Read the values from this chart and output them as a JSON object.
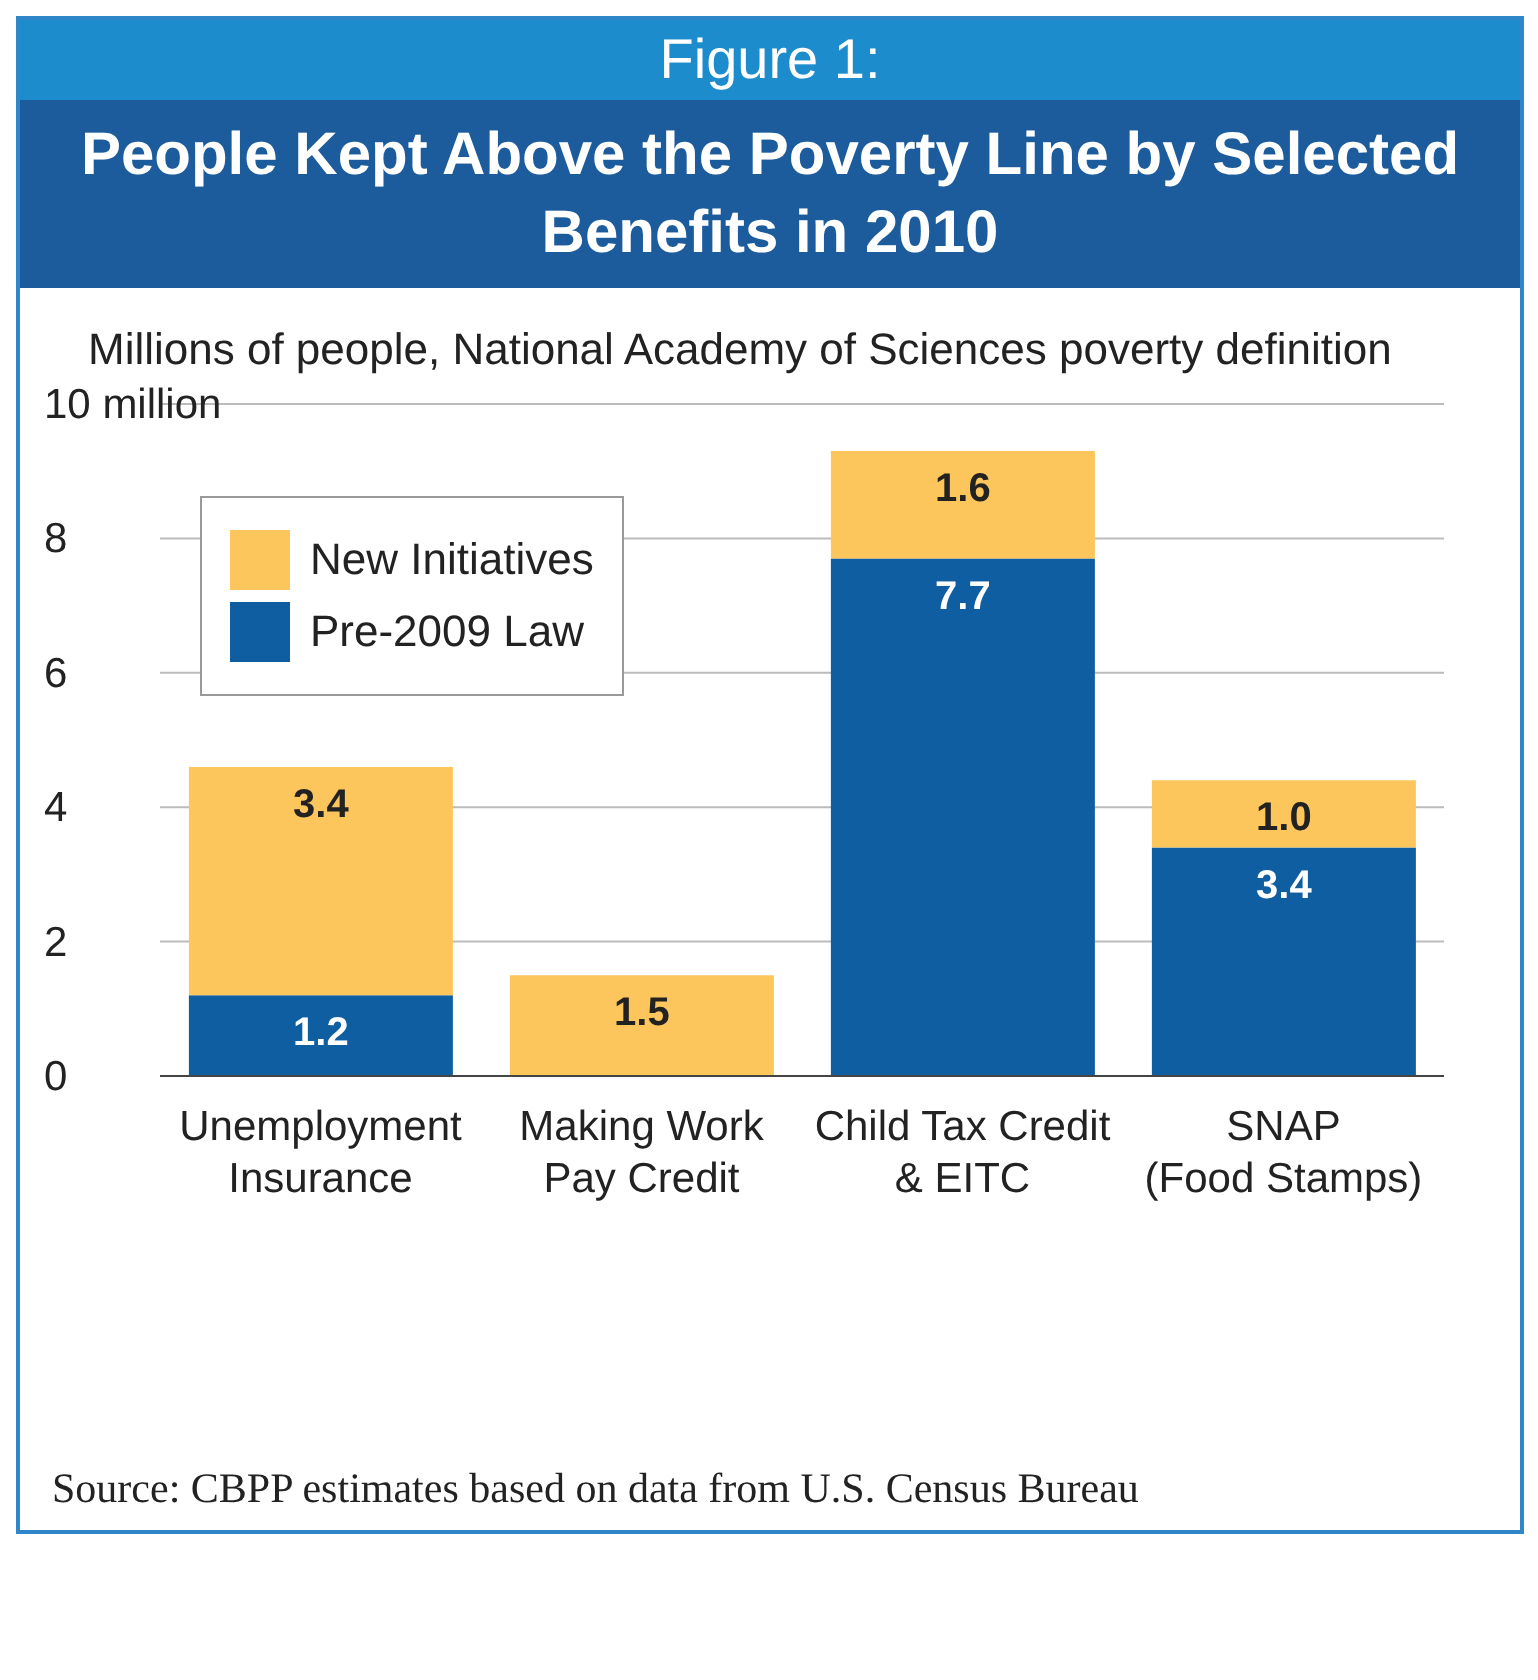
{
  "chart_data": {
    "type": "bar",
    "title": "Figure 1:",
    "subtitle": "People Kept Above the Poverty Line by Selected Benefits in 2010",
    "ylabel": "Millions of people, National Academy of Sciences poverty definition",
    "categories": [
      "Unemployment\nInsurance",
      "Making Work\nPay Credit",
      "Child Tax Credit\n& EITC",
      "SNAP\n(Food Stamps)"
    ],
    "series": [
      {
        "name": "Pre-2009 Law",
        "color": "#0f5ea2",
        "values": [
          1.2,
          null,
          7.7,
          3.4
        ],
        "value_labels": [
          "1.2",
          null,
          "7.7",
          "3.4"
        ]
      },
      {
        "name": "New Initiatives",
        "color": "#fcc65c",
        "values": [
          3.4,
          1.5,
          1.6,
          1.0
        ],
        "value_labels": [
          "3.4",
          "1.5",
          "1.6",
          "1.0"
        ]
      }
    ],
    "stacked": true,
    "ylim": [
      0,
      10
    ],
    "yticks": [
      0,
      2,
      4,
      6,
      8,
      {
        "value": 10,
        "label": "10 million"
      }
    ],
    "grid": "y",
    "legend": "top left",
    "annotations": [
      "Source: CBPP estimates based on data from U.S. Census Bureau"
    ]
  }
}
